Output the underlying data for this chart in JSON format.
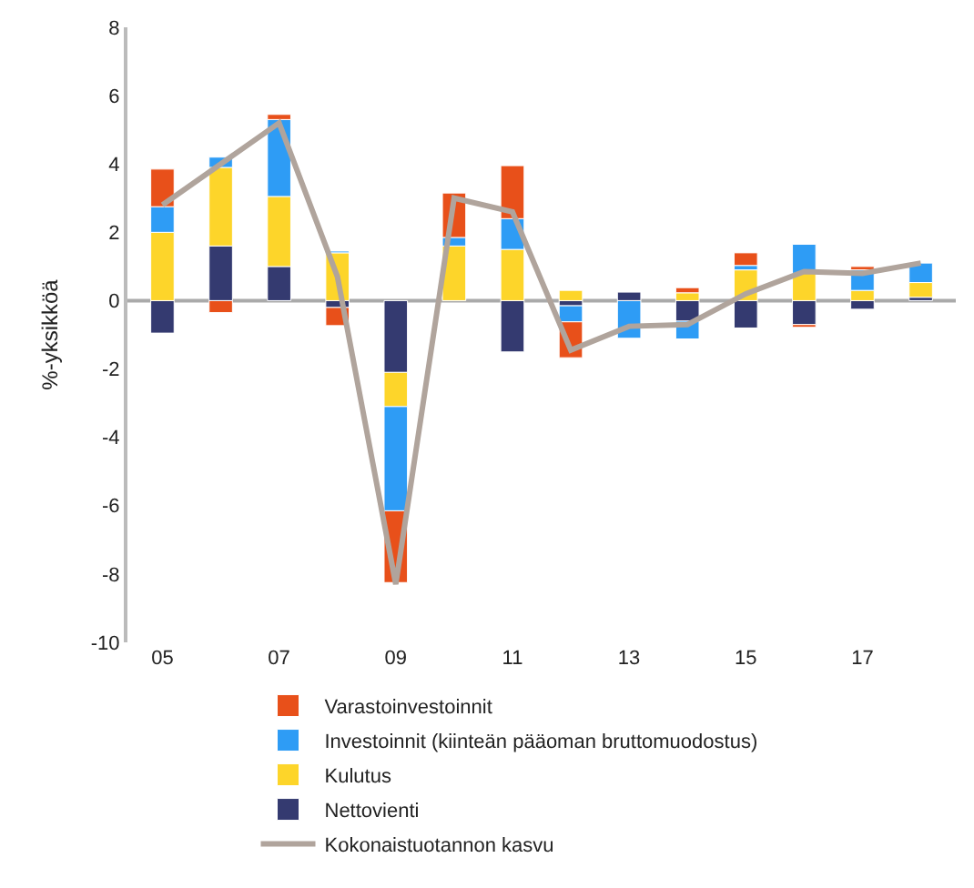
{
  "chart_data": {
    "type": "bar",
    "stacked": true,
    "ylabel": "%-yksikköä",
    "categories": [
      "05",
      null,
      "07",
      null,
      "09",
      null,
      "11",
      null,
      "13",
      null,
      "15",
      null,
      "17",
      null
    ],
    "series": [
      {
        "name": "Nettovienti",
        "color": "#343a70",
        "values": [
          -0.95,
          1.6,
          1.0,
          -0.2,
          -2.1,
          null,
          -1.5,
          -0.15,
          0.25,
          -0.6,
          -0.8,
          -0.7,
          -0.25,
          0.1
        ]
      },
      {
        "name": "Kulutus",
        "color": "#fdd52a",
        "values": [
          2.0,
          2.3,
          2.05,
          1.4,
          -1.0,
          1.6,
          1.5,
          0.3,
          null,
          0.23,
          0.9,
          0.8,
          0.3,
          0.43
        ]
      },
      {
        "name": "Investoinnit (kiinteän pääoman bruttomuodostus)",
        "color": "#2e9cf5",
        "values": [
          0.75,
          0.3,
          2.25,
          0.05,
          -3.05,
          0.25,
          0.9,
          -0.47,
          -1.1,
          -0.52,
          0.13,
          0.85,
          0.6,
          0.57
        ]
      },
      {
        "name": "Varastoinvestoinnit",
        "color": "#e8501a",
        "values": [
          1.1,
          -0.35,
          0.15,
          -0.53,
          -2.1,
          1.3,
          1.55,
          -1.05,
          null,
          0.15,
          0.37,
          -0.08,
          0.1,
          null
        ]
      },
      {
        "name": "Kokonaistuotannon kasvu",
        "type": "line",
        "color": "#b0a49c",
        "values": [
          2.8,
          4.0,
          5.2,
          0.7,
          -8.3,
          3.0,
          2.6,
          -1.45,
          -0.75,
          -0.7,
          0.2,
          0.85,
          0.8,
          1.1
        ]
      }
    ],
    "ylim": [
      -10,
      8
    ],
    "yticks": [
      -10,
      -8,
      -6,
      -4,
      -2,
      0,
      2,
      4,
      6,
      8
    ],
    "ref_lines": [
      {
        "axis": "y",
        "value": 0,
        "color": "#aaaaaa"
      }
    ],
    "grid": false,
    "legend": "bottom",
    "marker": "none",
    "line_style": "solid"
  }
}
